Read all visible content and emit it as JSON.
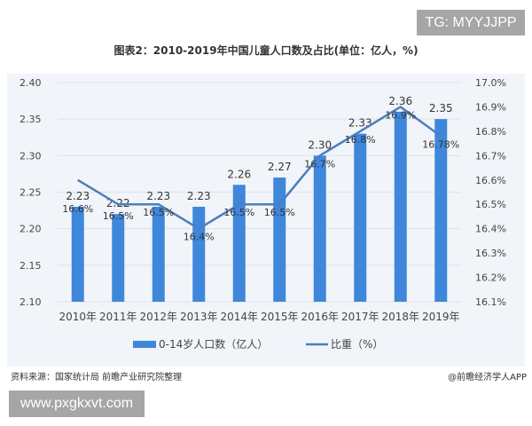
{
  "watermark_top": "TG: MYYJJPP",
  "watermark_bottom": "www.pxgkxvt.com",
  "source": "资料来源：国家统计局 前瞻产业研究院整理",
  "credit": "@前瞻经济学人APP",
  "chart_data": {
    "type": "bar+line",
    "title": "图表2：2010-2019年中国儿童人口数及占比(单位：亿人，%)",
    "categories": [
      "2010年",
      "2011年",
      "2012年",
      "2013年",
      "2014年",
      "2015年",
      "2016年",
      "2017年",
      "2018年",
      "2019年"
    ],
    "series": [
      {
        "name": "0-14岁人口数（亿人）",
        "type": "bar",
        "axis": "left",
        "color": "#3f87db",
        "values": [
          2.23,
          2.22,
          2.23,
          2.23,
          2.26,
          2.27,
          2.3,
          2.33,
          2.36,
          2.35
        ],
        "labels": [
          "2.23",
          "2.22",
          "2.23",
          "2.23",
          "2.26",
          "2.27",
          "2.30",
          "2.33",
          "2.36",
          "2.35"
        ]
      },
      {
        "name": "比重（%）",
        "type": "line",
        "axis": "right",
        "color": "#4a7fbd",
        "values": [
          16.6,
          16.5,
          16.5,
          16.4,
          16.5,
          16.5,
          16.7,
          16.8,
          16.9,
          16.78
        ],
        "labels": [
          "16.6%",
          "16.5%",
          "16.5%",
          "16.4%",
          "16.5%",
          "16.5%",
          "16.7%",
          "16.8%",
          "16.9%",
          "16.78%"
        ]
      }
    ],
    "left_axis": {
      "ylim": [
        2.1,
        2.4
      ],
      "ticks": [
        "2.10",
        "2.15",
        "2.20",
        "2.25",
        "2.30",
        "2.35",
        "2.40"
      ]
    },
    "right_axis": {
      "ylim": [
        16.1,
        17.0
      ],
      "ticks": [
        "16.1%",
        "16.2%",
        "16.3%",
        "16.4%",
        "16.5%",
        "16.6%",
        "16.7%",
        "16.8%",
        "16.9%",
        "17.0%"
      ]
    },
    "grid": true,
    "legend": "bottom"
  }
}
